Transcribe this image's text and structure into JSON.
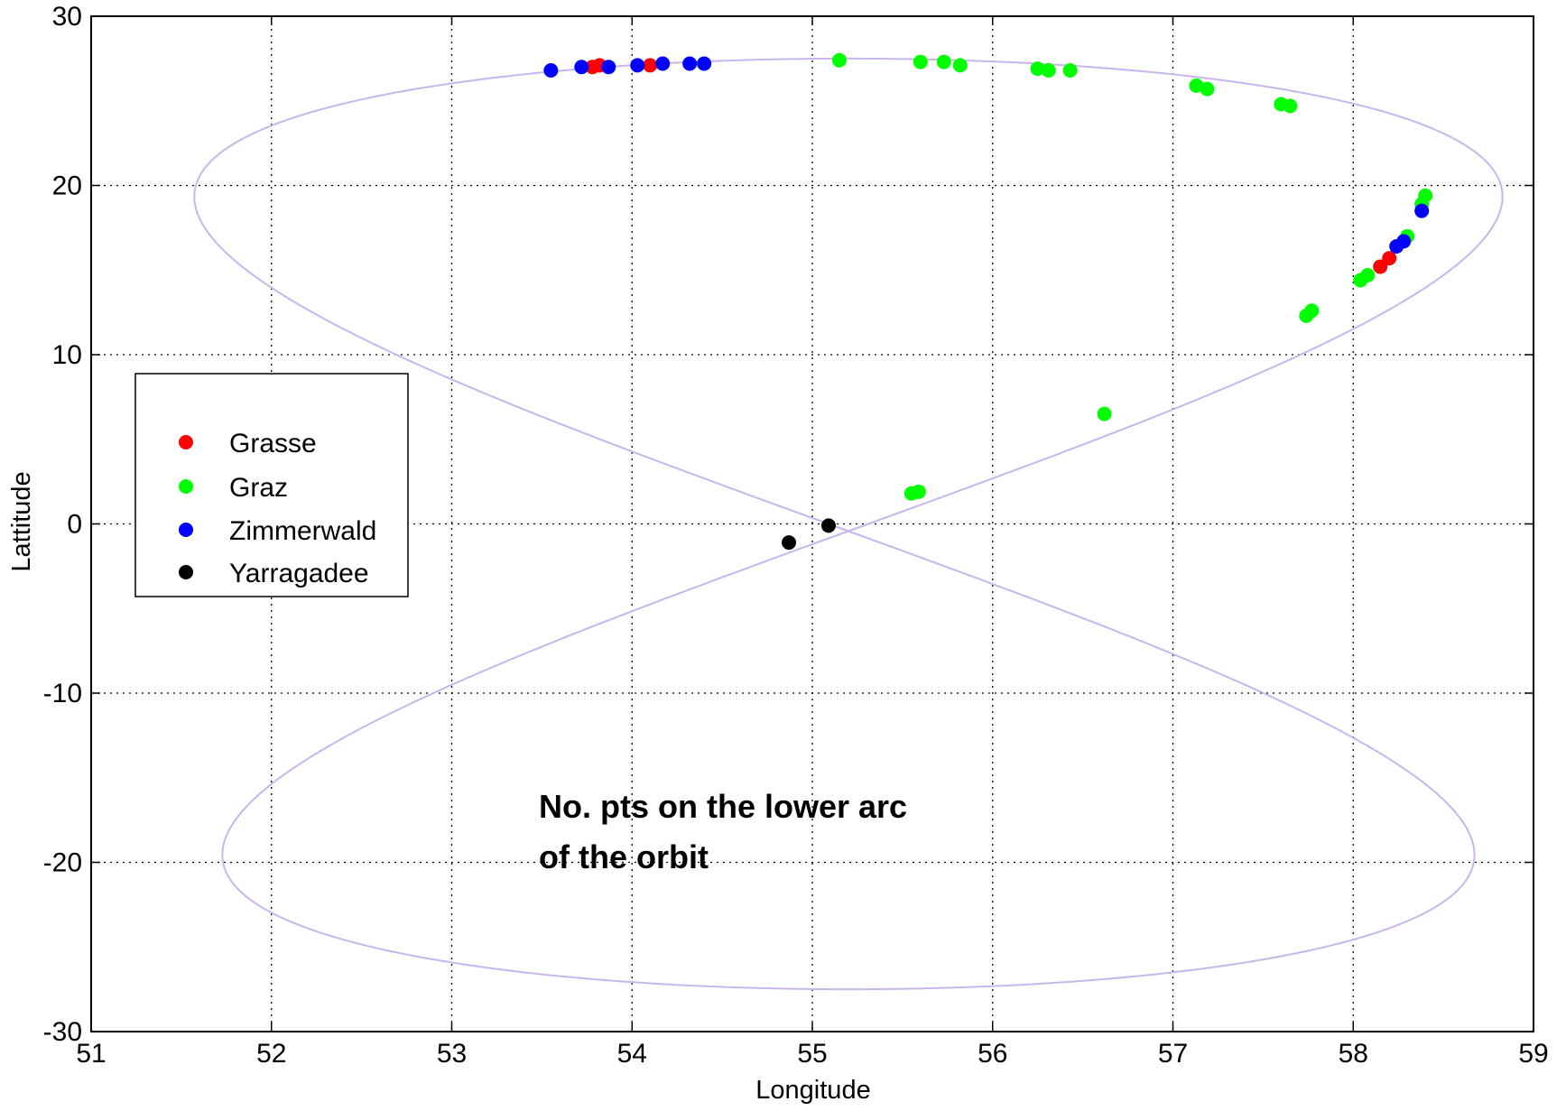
{
  "chart_data": {
    "type": "scatter",
    "title": "",
    "xlabel": "Longitude",
    "ylabel": "Lattitude",
    "xlim": [
      51,
      59
    ],
    "ylim": [
      -30,
      30
    ],
    "xticks": [
      51,
      52,
      53,
      54,
      55,
      56,
      57,
      58,
      59
    ],
    "yticks": [
      -30,
      -20,
      -10,
      0,
      10,
      20,
      30
    ],
    "grid": true,
    "grid_style": "dotted",
    "legend_position": "left-middle",
    "orbit_track": {
      "description_shown": false,
      "color": "#c9b5ee",
      "center_longitude": 55.2,
      "longitude_amplitude": 3.55,
      "latitude_amplitude": 27.5,
      "longitude_skew": 0.11
    },
    "series": [
      {
        "name": "Grasse",
        "color": "#ff0000",
        "points": [
          {
            "x": 53.78,
            "y": 27.0
          },
          {
            "x": 53.82,
            "y": 27.1
          },
          {
            "x": 54.1,
            "y": 27.1
          },
          {
            "x": 58.15,
            "y": 15.2
          },
          {
            "x": 58.2,
            "y": 15.7
          }
        ]
      },
      {
        "name": "Graz",
        "color": "#00ff00",
        "points": [
          {
            "x": 55.15,
            "y": 27.4
          },
          {
            "x": 55.6,
            "y": 27.3
          },
          {
            "x": 55.73,
            "y": 27.3
          },
          {
            "x": 55.82,
            "y": 27.1
          },
          {
            "x": 56.25,
            "y": 26.9
          },
          {
            "x": 56.31,
            "y": 26.8
          },
          {
            "x": 56.43,
            "y": 26.8
          },
          {
            "x": 57.13,
            "y": 25.9
          },
          {
            "x": 57.19,
            "y": 25.7
          },
          {
            "x": 57.6,
            "y": 24.8
          },
          {
            "x": 57.65,
            "y": 24.7
          },
          {
            "x": 58.4,
            "y": 19.4
          },
          {
            "x": 58.38,
            "y": 18.9
          },
          {
            "x": 58.3,
            "y": 17.0
          },
          {
            "x": 58.08,
            "y": 14.7
          },
          {
            "x": 58.04,
            "y": 14.4
          },
          {
            "x": 57.77,
            "y": 12.6
          },
          {
            "x": 57.74,
            "y": 12.3
          },
          {
            "x": 56.62,
            "y": 6.5
          },
          {
            "x": 55.59,
            "y": 1.9
          },
          {
            "x": 55.55,
            "y": 1.8
          }
        ]
      },
      {
        "name": "Zimmerwald",
        "color": "#0000ff",
        "points": [
          {
            "x": 53.55,
            "y": 26.8
          },
          {
            "x": 53.72,
            "y": 27.0
          },
          {
            "x": 53.87,
            "y": 27.0
          },
          {
            "x": 54.03,
            "y": 27.1
          },
          {
            "x": 54.17,
            "y": 27.2
          },
          {
            "x": 54.32,
            "y": 27.2
          },
          {
            "x": 54.4,
            "y": 27.2
          },
          {
            "x": 58.38,
            "y": 18.5
          },
          {
            "x": 58.28,
            "y": 16.7
          },
          {
            "x": 58.24,
            "y": 16.4
          }
        ]
      },
      {
        "name": "Yarragadee",
        "color": "#000000",
        "points": [
          {
            "x": 54.87,
            "y": -1.1
          },
          {
            "x": 55.09,
            "y": -0.1
          }
        ]
      }
    ],
    "annotations": [
      {
        "line": "No. pts  on the lower arc"
      },
      {
        "line": "of the orbit"
      }
    ]
  }
}
